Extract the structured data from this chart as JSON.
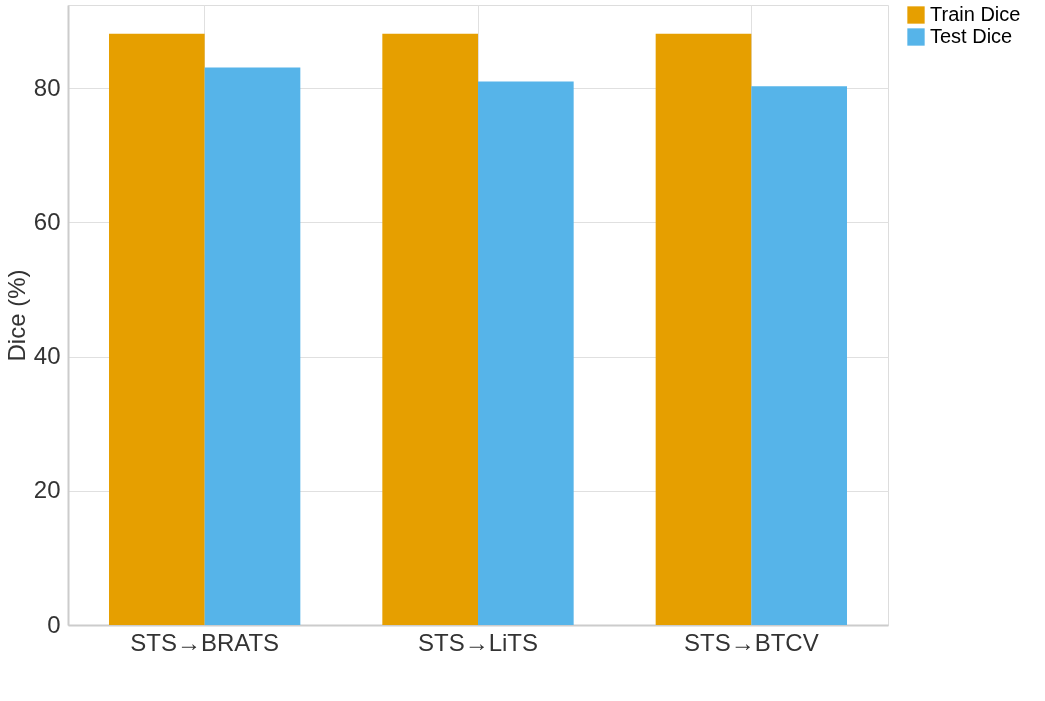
{
  "chart_data": {
    "type": "bar",
    "ylabel": "Dice (%)",
    "categories": [
      "STS→BRATS",
      "STS→LiTS",
      "STS→BTCV"
    ],
    "series": [
      {
        "name": "Train Dice",
        "color": "#e69f00",
        "values": [
          88.1,
          88.1,
          88.1
        ]
      },
      {
        "name": "Test Dice",
        "color": "#56b4e9",
        "values": [
          83.1,
          81.0,
          80.3
        ]
      }
    ],
    "ylim": [
      0,
      92.4
    ],
    "yticks": [
      0,
      20,
      40,
      60,
      80
    ],
    "grid": true,
    "legend": "top right"
  }
}
